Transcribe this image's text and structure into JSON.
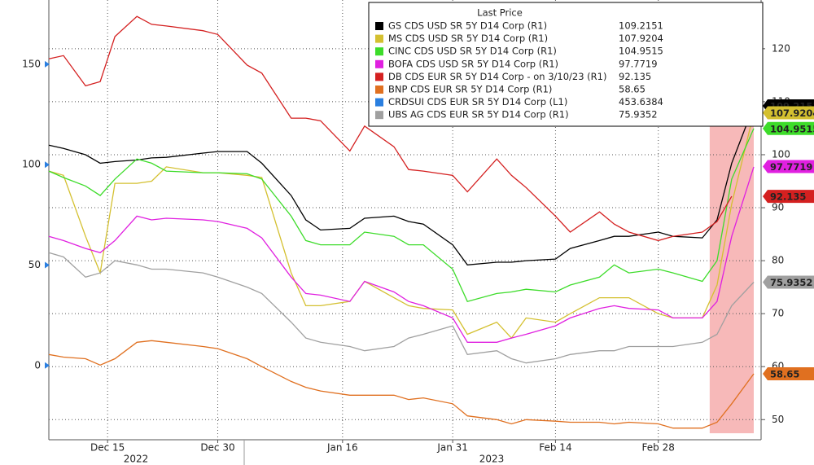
{
  "chart_data": {
    "type": "line",
    "x": [
      "2022-12-07",
      "2022-12-09",
      "2022-12-12",
      "2022-12-14",
      "2022-12-16",
      "2022-12-19",
      "2022-12-21",
      "2022-12-23",
      "2022-12-28",
      "2022-12-30",
      "2023-01-03",
      "2023-01-05",
      "2023-01-09",
      "2023-01-11",
      "2023-01-13",
      "2023-01-17",
      "2023-01-19",
      "2023-01-23",
      "2023-01-25",
      "2023-01-27",
      "2023-01-31",
      "2023-02-02",
      "2023-02-06",
      "2023-02-08",
      "2023-02-10",
      "2023-02-14",
      "2023-02-16",
      "2023-02-20",
      "2023-02-22",
      "2023-02-24",
      "2023-02-28",
      "2023-03-02",
      "2023-03-06",
      "2023-03-08",
      "2023-03-10",
      "2023-03-13"
    ],
    "xlim": [
      "2022-12-07",
      "2023-03-14"
    ],
    "xticks": [
      {
        "value": "2022-12-15",
        "label": "Dec 15"
      },
      {
        "value": "2022-12-30",
        "label": "Dec 30"
      },
      {
        "value": "2023-01-16",
        "label": "Jan 16"
      },
      {
        "value": "2023-01-31",
        "label": "Jan 31"
      },
      {
        "value": "2023-02-14",
        "label": "Feb 14"
      },
      {
        "value": "2023-02-28",
        "label": "Feb 28"
      }
    ],
    "years": [
      "2022",
      "2023"
    ],
    "ylim": [
      -37,
      182
    ],
    "yticks": [
      0,
      50,
      100,
      150
    ],
    "y2lim": [
      46.2,
      129.2
    ],
    "y2ticks": [
      50,
      60,
      70,
      80,
      90,
      100,
      110,
      120
    ],
    "legend_title": "Last Price",
    "highlight": {
      "x": [
        "2023-03-07",
        "2023-03-13"
      ],
      "color": "#f08080"
    },
    "series": [
      {
        "name": "GS CDS USD SR 5Y D14 Corp (R1)",
        "color": "#000000",
        "axis": "y2",
        "last": 109.2151,
        "values": [
          101.8,
          101.2,
          100.0,
          98.4,
          98.7,
          99.0,
          99.4,
          99.5,
          100.3,
          100.6,
          100.6,
          98.4,
          92.3,
          87.7,
          85.8,
          86.1,
          88.0,
          88.4,
          87.4,
          86.9,
          83.0,
          79.2,
          79.7,
          79.7,
          80.0,
          80.3,
          82.3,
          83.8,
          84.6,
          84.6,
          85.4,
          84.6,
          84.3,
          87.7,
          98.4,
          109.2
        ]
      },
      {
        "name": "MS CDS USD SR 5Y D14 Corp (R1)",
        "color": "#d4c030",
        "axis": "y2",
        "last": 107.9204,
        "values": [
          96.9,
          96.1,
          84.6,
          77.7,
          94.6,
          94.6,
          95.0,
          97.7,
          96.6,
          96.6,
          96.1,
          95.7,
          77.7,
          71.5,
          71.5,
          72.3,
          76.1,
          73.0,
          71.5,
          71.0,
          70.7,
          66.1,
          68.4,
          65.4,
          69.2,
          68.4,
          70.0,
          73.0,
          73.0,
          73.0,
          70.0,
          69.2,
          69.2,
          75.4,
          90.7,
          107.9
        ]
      },
      {
        "name": "CINC CDS USD SR 5Y D14 Corp (R1)",
        "color": "#3ddc2a",
        "axis": "y2",
        "last": 104.9515,
        "values": [
          96.9,
          95.7,
          94.1,
          92.3,
          95.4,
          99.2,
          98.4,
          96.9,
          96.6,
          96.6,
          96.4,
          95.4,
          88.4,
          83.8,
          83.0,
          83.0,
          85.4,
          84.6,
          83.0,
          83.0,
          78.4,
          72.3,
          73.8,
          74.1,
          74.6,
          74.1,
          75.4,
          76.9,
          79.2,
          77.7,
          78.4,
          77.7,
          76.1,
          80.0,
          95.4,
          104.95
        ]
      },
      {
        "name": "BOFA CDS USD SR 5Y D14 Corp (R1)",
        "color": "#e020e0",
        "axis": "y2",
        "last": 97.7719,
        "values": [
          84.6,
          83.8,
          82.3,
          81.5,
          83.8,
          88.4,
          87.7,
          88.0,
          87.7,
          87.4,
          86.1,
          84.3,
          76.9,
          73.8,
          73.5,
          72.3,
          76.1,
          74.1,
          72.3,
          71.5,
          69.2,
          64.6,
          64.6,
          65.4,
          66.1,
          67.7,
          69.2,
          71.0,
          71.5,
          71.0,
          70.7,
          69.2,
          69.2,
          72.3,
          84.6,
          97.7
        ]
      },
      {
        "name": "DB CDS EUR SR 5Y D14 Corp - on 3/10/23 (R1)",
        "color": "#d42020",
        "axis": "y2",
        "last": 92.135,
        "values": [
          118.1,
          118.7,
          113.0,
          113.8,
          122.3,
          126.1,
          124.6,
          124.3,
          123.4,
          122.7,
          116.9,
          115.4,
          106.9,
          106.9,
          106.4,
          100.7,
          105.4,
          101.5,
          97.2,
          96.9,
          96.1,
          93.0,
          99.2,
          96.1,
          93.8,
          88.4,
          85.4,
          89.2,
          86.9,
          85.4,
          83.8,
          84.6,
          85.4,
          87.4,
          92.135,
          null
        ]
      },
      {
        "name": "BNP CDS EUR SR 5Y D14 Corp (R1)",
        "color": "#e07020",
        "axis": "y2",
        "last": 58.65,
        "values": [
          62.3,
          61.8,
          61.5,
          60.3,
          61.5,
          64.6,
          64.9,
          64.6,
          63.8,
          63.4,
          61.5,
          60.0,
          57.2,
          56.1,
          55.4,
          54.6,
          54.6,
          54.6,
          53.8,
          54.1,
          53.0,
          50.7,
          50.0,
          49.2,
          50.0,
          49.7,
          49.5,
          49.5,
          49.2,
          49.5,
          49.2,
          48.4,
          48.4,
          49.5,
          53.0,
          58.65
        ]
      },
      {
        "name": "CRDSUI CDS EUR SR 5Y D14 Corp (L1)",
        "color": "#2a7fe0",
        "axis": "y",
        "last": 453.6384
      },
      {
        "name": "UBS AG CDS EUR SR 5Y D14 Corp (R1)",
        "color": "#a0a0a0",
        "axis": "y2",
        "last": 75.9352,
        "values": [
          81.5,
          80.7,
          76.9,
          77.7,
          80.0,
          79.2,
          78.4,
          78.4,
          77.7,
          76.9,
          75.0,
          73.8,
          68.4,
          65.4,
          64.6,
          63.8,
          63.0,
          63.8,
          65.4,
          66.1,
          67.7,
          62.3,
          63.0,
          61.5,
          60.7,
          61.5,
          62.3,
          63.0,
          63.0,
          63.8,
          63.8,
          63.8,
          64.6,
          66.1,
          71.5,
          75.94
        ]
      }
    ]
  }
}
